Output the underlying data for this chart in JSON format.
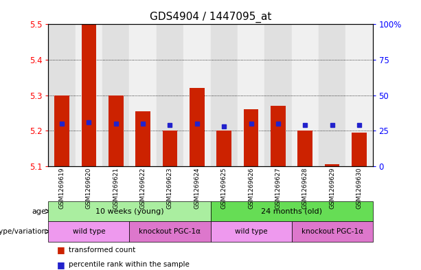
{
  "title": "GDS4904 / 1447095_at",
  "samples": [
    "GSM1269619",
    "GSM1269620",
    "GSM1269621",
    "GSM1269622",
    "GSM1269623",
    "GSM1269624",
    "GSM1269625",
    "GSM1269626",
    "GSM1269627",
    "GSM1269628",
    "GSM1269629",
    "GSM1269630"
  ],
  "transformed_count": [
    5.3,
    5.5,
    5.3,
    5.255,
    5.2,
    5.32,
    5.2,
    5.26,
    5.27,
    5.2,
    5.105,
    5.195
  ],
  "percentile_rank": [
    30,
    31,
    30,
    30,
    29,
    30,
    28,
    30,
    30,
    29,
    29,
    29
  ],
  "base_value": 5.1,
  "ylim": [
    5.1,
    5.5
  ],
  "yticks": [
    5.1,
    5.2,
    5.3,
    5.4,
    5.5
  ],
  "right_yticks": [
    0,
    25,
    50,
    75,
    100
  ],
  "right_ylabels": [
    "0",
    "25",
    "50",
    "75",
    "100%"
  ],
  "bar_color": "#CC2200",
  "percentile_color": "#2222CC",
  "age_groups": [
    {
      "label": "10 weeks (young)",
      "start": 0,
      "end": 6,
      "color": "#AAEEA0"
    },
    {
      "label": "24 months (old)",
      "start": 6,
      "end": 12,
      "color": "#66DD55"
    }
  ],
  "genotype_groups": [
    {
      "label": "wild type",
      "start": 0,
      "end": 3,
      "color": "#EE99EE"
    },
    {
      "label": "knockout PGC-1α",
      "start": 3,
      "end": 6,
      "color": "#DD77CC"
    },
    {
      "label": "wild type",
      "start": 6,
      "end": 9,
      "color": "#EE99EE"
    },
    {
      "label": "knockout PGC-1α",
      "start": 9,
      "end": 12,
      "color": "#DD77CC"
    }
  ],
  "age_label": "age",
  "genotype_label": "genotype/variation",
  "legend_items": [
    {
      "label": "transformed count",
      "color": "#CC2200"
    },
    {
      "label": "percentile rank within the sample",
      "color": "#2222CC"
    }
  ],
  "col_bg_even": "#E0E0E0",
  "col_bg_odd": "#F0F0F0",
  "title_fontsize": 11,
  "tick_fontsize": 8.5,
  "bar_width": 0.55
}
